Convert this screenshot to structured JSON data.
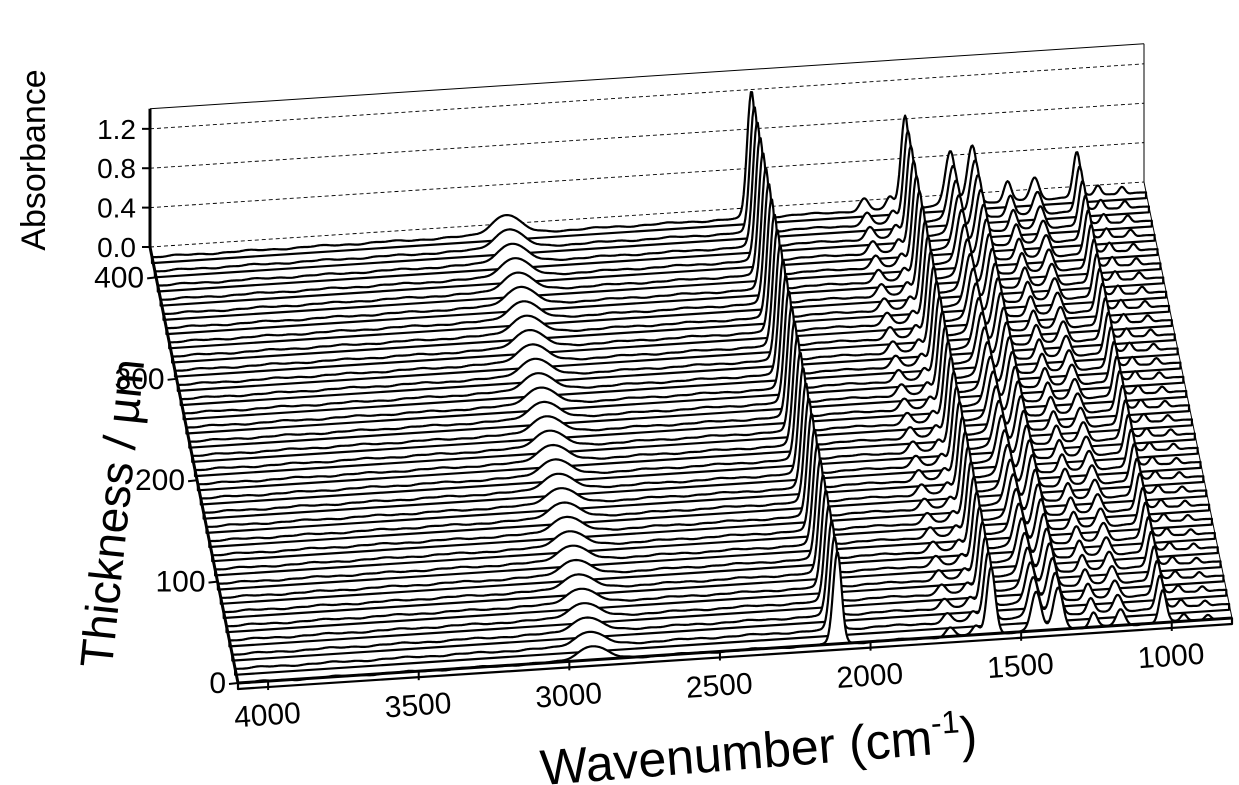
{
  "chart_data": {
    "type": "waterfall-line",
    "xlabel_main": "Wavenumber (cm",
    "xlabel_sup": "-1",
    "xlabel_close": ")",
    "ylabel": "Thickness / µm",
    "zlabel": "Absorbance",
    "x_ticks": [
      "4000",
      "3500",
      "3000",
      "2500",
      "2000",
      "1500",
      "1000"
    ],
    "y_ticks": [
      "0",
      "100",
      "200",
      "300",
      "400"
    ],
    "z_ticks": [
      "0.0",
      "0.4",
      "0.8",
      "1.2"
    ],
    "xlim": [
      4100,
      800
    ],
    "ylim": [
      0,
      430
    ],
    "zlim": [
      0,
      1.3
    ],
    "thickness_step": 14,
    "thickness_count": 31,
    "peaks": [
      {
        "center": 2925,
        "width": 45,
        "height": 0.2
      },
      {
        "center": 2110,
        "width": 14,
        "height": 1.3
      },
      {
        "center": 1736,
        "width": 14,
        "height": 0.12
      },
      {
        "center": 1650,
        "width": 12,
        "height": 0.12
      },
      {
        "center": 1600,
        "width": 14,
        "height": 0.95
      },
      {
        "center": 1450,
        "width": 16,
        "height": 0.55
      },
      {
        "center": 1377,
        "width": 16,
        "height": 0.6
      },
      {
        "center": 1260,
        "width": 12,
        "height": 0.2
      },
      {
        "center": 1170,
        "width": 14,
        "height": 0.22
      },
      {
        "center": 1030,
        "width": 12,
        "height": 0.46
      },
      {
        "center": 960,
        "width": 10,
        "height": 0.1
      },
      {
        "center": 880,
        "width": 10,
        "height": 0.08
      }
    ],
    "grid": true
  }
}
